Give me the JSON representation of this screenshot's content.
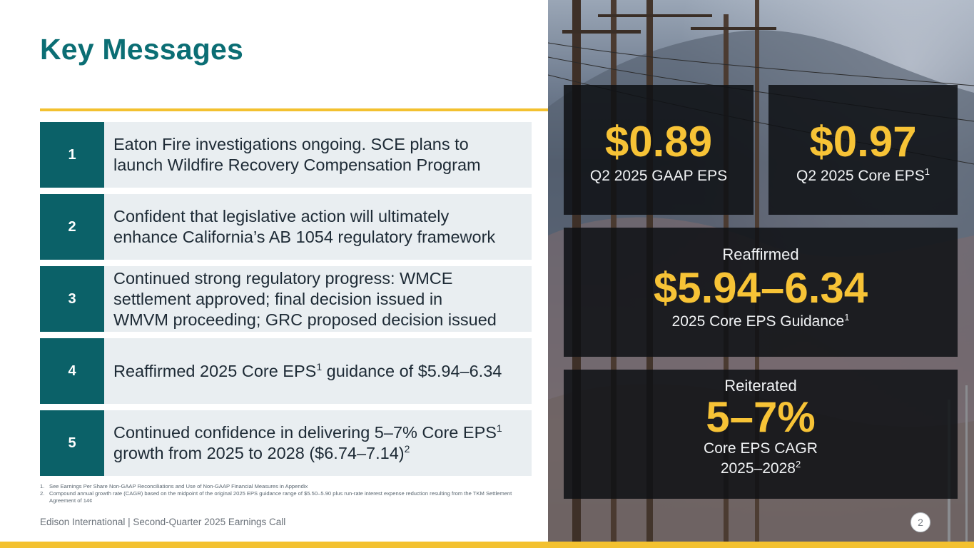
{
  "slide": {
    "title": "Key Messages",
    "page_number": "2",
    "footer": "Edison International |  Second-Quarter 2025 Earnings Call"
  },
  "messages": [
    {
      "number": "1",
      "lines": [
        "Eaton Fire investigations ongoing. SCE plans to",
        "launch Wildfire Recovery Compensation Program"
      ]
    },
    {
      "number": "2",
      "lines": [
        "Confident that legislative action will ultimately",
        "enhance California’s AB 1054 regulatory framework"
      ]
    },
    {
      "number": "3",
      "lines": [
        "Continued strong regulatory progress: WMCE",
        "settlement approved; final decision issued in",
        "WMVM proceeding; GRC proposed decision issued"
      ]
    },
    {
      "number": "4",
      "text_before": "Reaffirmed 2025 Core EPS",
      "sup": "1",
      "text_after": " guidance of $5.94–6.34"
    },
    {
      "number": "5",
      "line1_text": "Continued confidence in delivering 5–7% Core EPS",
      "line1_sup": "1",
      "line2_text": "growth from 2025 to 2028 ($6.74–7.14)",
      "line2_sup": "2"
    }
  ],
  "footnotes": [
    {
      "num": "1.",
      "text": "See Earnings Per Share Non-GAAP Reconciliations and Use of Non-GAAP Financial Measures in Appendix"
    },
    {
      "num": "2.",
      "text": "Compound annual growth rate (CAGR) based on the midpoint of the original 2025 EPS guidance range of $5.50–5.90 plus run-rate interest expense reduction resulting from the TKM Settlement Agreement of 14¢"
    }
  ],
  "stats": {
    "gaap_eps": {
      "value": "$0.89",
      "label": "Q2 2025 GAAP EPS"
    },
    "core_eps": {
      "value": "$0.97",
      "label": "Q2 2025 Core EPS",
      "sup": "1"
    },
    "guidance": {
      "kicker": "Reaffirmed",
      "value": "$5.94–6.34",
      "label": "2025 Core EPS Guidance",
      "sup": "1"
    },
    "cagr": {
      "kicker": "Reiterated",
      "value": "5–7%",
      "label_line1": "Core EPS CAGR",
      "label_line2": "2025–2028",
      "sup": "2"
    }
  },
  "colors": {
    "title_teal": "#0b6e74",
    "number_box_teal": "#0b6168",
    "accent_gold": "#f3c130",
    "stat_gold": "#f7c336",
    "message_bg": "#e9eef1"
  },
  "icons": {
    "background_photo": "power-lines-photo"
  }
}
